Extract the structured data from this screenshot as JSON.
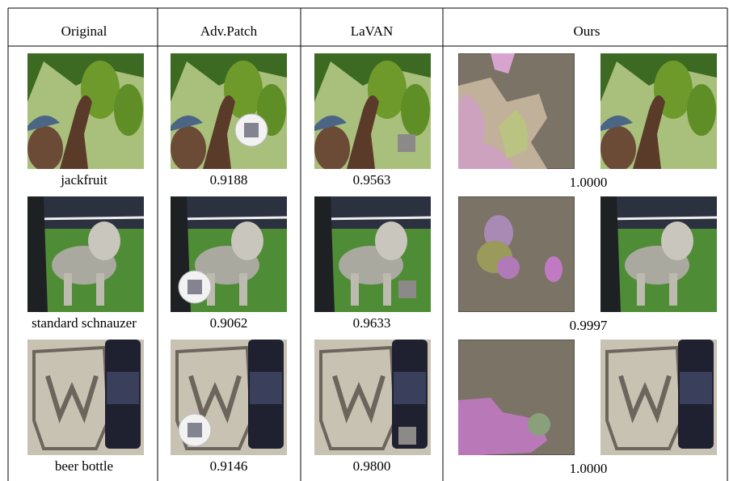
{
  "table": {
    "header": [
      "Original",
      "Adv.Patch",
      "LaVAN",
      "Ours"
    ],
    "rows": [
      {
        "label": "jackfruit",
        "adv_patch": "0.9188",
        "lavan": "0.9563",
        "ours": "1.0000"
      },
      {
        "label": "standard schnauzer",
        "adv_patch": "0.9062",
        "lavan": "0.9633",
        "ours": "0.9997"
      },
      {
        "label": "beer bottle",
        "adv_patch": "0.9146",
        "lavan": "0.9800",
        "ours": "1.0000"
      }
    ]
  }
}
